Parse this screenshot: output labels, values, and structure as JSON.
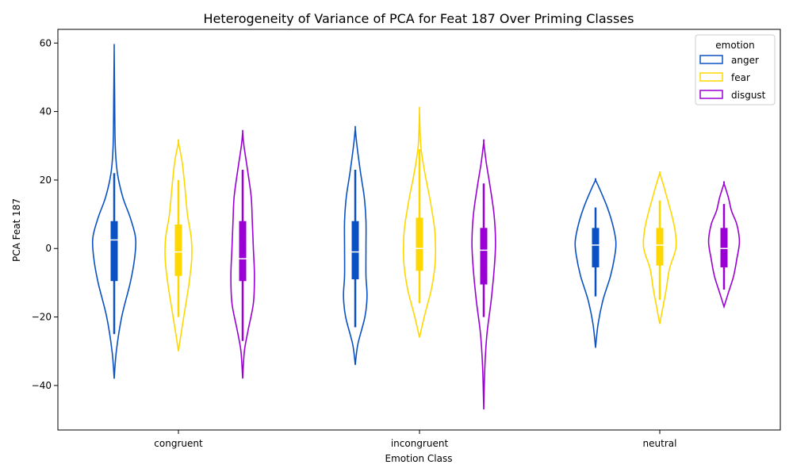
{
  "chart_data": {
    "type": "violin",
    "title": "Heterogeneity of Variance of PCA for Feat 187 Over Priming Classes",
    "xlabel": "Emotion Class",
    "ylabel": "PCA Feat 187",
    "categories": [
      "congruent",
      "incongruent",
      "neutral"
    ],
    "ylim": [
      -53,
      64
    ],
    "yticks": [
      -40,
      -20,
      0,
      20,
      40,
      60
    ],
    "legend": {
      "title": "emotion",
      "placement": "top-right",
      "entries": [
        "anger",
        "fear",
        "disgust"
      ]
    },
    "colors": {
      "anger": "#0a52c4",
      "fear": "#ffd700",
      "disgust": "#9a00d4"
    },
    "series": [
      {
        "name": "anger",
        "violins": [
          {
            "category": "congruent",
            "min": -38,
            "max": 58,
            "q1": -9.5,
            "median": 2.5,
            "q3": 8,
            "whisker_low": -25,
            "whisker_high": 22,
            "profile": [
              [
                -38,
                0.0
              ],
              [
                -30,
                0.1
              ],
              [
                -20,
                0.35
              ],
              [
                -10,
                0.75
              ],
              [
                -3,
                0.95
              ],
              [
                3,
                1.0
              ],
              [
                9,
                0.75
              ],
              [
                15,
                0.4
              ],
              [
                22,
                0.15
              ],
              [
                30,
                0.05
              ],
              [
                45,
                0.02
              ],
              [
                58,
                0.0
              ]
            ]
          },
          {
            "category": "incongruent",
            "min": -34,
            "max": 35,
            "q1": -9,
            "median": -1,
            "q3": 8,
            "whisker_low": -23,
            "whisker_high": 23,
            "profile": [
              [
                -34,
                0.0
              ],
              [
                -28,
                0.12
              ],
              [
                -20,
                0.45
              ],
              [
                -14,
                0.55
              ],
              [
                -8,
                0.5
              ],
              [
                0,
                0.5
              ],
              [
                8,
                0.5
              ],
              [
                15,
                0.42
              ],
              [
                22,
                0.25
              ],
              [
                30,
                0.08
              ],
              [
                35,
                0.0
              ]
            ]
          },
          {
            "category": "neutral",
            "min": -29,
            "max": 20,
            "q1": -5.5,
            "median": 1,
            "q3": 6,
            "whisker_low": -14,
            "whisker_high": 12,
            "profile": [
              [
                -29,
                0.0
              ],
              [
                -22,
                0.12
              ],
              [
                -15,
                0.35
              ],
              [
                -8,
                0.7
              ],
              [
                -2,
                0.9
              ],
              [
                2,
                0.95
              ],
              [
                7,
                0.8
              ],
              [
                12,
                0.55
              ],
              [
                17,
                0.22
              ],
              [
                20,
                0.0
              ]
            ]
          }
        ]
      },
      {
        "name": "fear",
        "violins": [
          {
            "category": "congruent",
            "min": -30,
            "max": 31,
            "q1": -8,
            "median": -1,
            "q3": 7,
            "whisker_low": -20,
            "whisker_high": 20,
            "profile": [
              [
                -30,
                0.0
              ],
              [
                -25,
                0.12
              ],
              [
                -18,
                0.3
              ],
              [
                -10,
                0.5
              ],
              [
                -3,
                0.62
              ],
              [
                3,
                0.6
              ],
              [
                10,
                0.42
              ],
              [
                18,
                0.3
              ],
              [
                25,
                0.18
              ],
              [
                31,
                0.0
              ]
            ]
          },
          {
            "category": "incongruent",
            "min": -26,
            "max": 40,
            "q1": -6.5,
            "median": 0,
            "q3": 9,
            "whisker_low": -16,
            "whisker_high": 29,
            "profile": [
              [
                -26,
                0.0
              ],
              [
                -20,
                0.22
              ],
              [
                -12,
                0.55
              ],
              [
                -5,
                0.72
              ],
              [
                0,
                0.75
              ],
              [
                6,
                0.7
              ],
              [
                14,
                0.5
              ],
              [
                22,
                0.25
              ],
              [
                30,
                0.06
              ],
              [
                40,
                0.0
              ]
            ]
          },
          {
            "category": "neutral",
            "min": -22,
            "max": 22,
            "q1": -5,
            "median": 1,
            "q3": 6,
            "whisker_low": -15,
            "whisker_high": 14,
            "profile": [
              [
                -22,
                0.0
              ],
              [
                -17,
                0.15
              ],
              [
                -12,
                0.3
              ],
              [
                -6,
                0.45
              ],
              [
                0,
                0.75
              ],
              [
                5,
                0.72
              ],
              [
                10,
                0.55
              ],
              [
                15,
                0.33
              ],
              [
                19,
                0.15
              ],
              [
                22,
                0.0
              ]
            ]
          }
        ]
      },
      {
        "name": "disgust",
        "violins": [
          {
            "category": "congruent",
            "min": -38,
            "max": 34,
            "q1": -9.5,
            "median": -3,
            "q3": 8,
            "whisker_low": -27,
            "whisker_high": 23,
            "profile": [
              [
                -38,
                0.0
              ],
              [
                -30,
                0.08
              ],
              [
                -24,
                0.25
              ],
              [
                -16,
                0.5
              ],
              [
                -8,
                0.55
              ],
              [
                0,
                0.5
              ],
              [
                8,
                0.45
              ],
              [
                15,
                0.4
              ],
              [
                22,
                0.25
              ],
              [
                30,
                0.06
              ],
              [
                34,
                0.0
              ]
            ]
          },
          {
            "category": "incongruent",
            "min": -47,
            "max": 31,
            "q1": -10.5,
            "median": -0.5,
            "q3": 6,
            "whisker_low": -20,
            "whisker_high": 19,
            "profile": [
              [
                -47,
                0.0
              ],
              [
                -35,
                0.05
              ],
              [
                -25,
                0.15
              ],
              [
                -15,
                0.35
              ],
              [
                -5,
                0.5
              ],
              [
                2,
                0.55
              ],
              [
                10,
                0.48
              ],
              [
                18,
                0.3
              ],
              [
                25,
                0.12
              ],
              [
                31,
                0.0
              ]
            ]
          },
          {
            "category": "neutral",
            "min": -17,
            "max": 19,
            "q1": -5.5,
            "median": 0,
            "q3": 6,
            "whisker_low": -12,
            "whisker_high": 13,
            "profile": [
              [
                -17,
                0.0
              ],
              [
                -13,
                0.2
              ],
              [
                -8,
                0.45
              ],
              [
                -3,
                0.6
              ],
              [
                2,
                0.72
              ],
              [
                7,
                0.6
              ],
              [
                11,
                0.35
              ],
              [
                15,
                0.2
              ],
              [
                19,
                0.0
              ]
            ]
          }
        ]
      }
    ]
  }
}
